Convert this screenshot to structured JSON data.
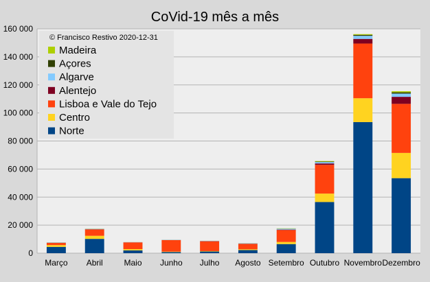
{
  "chart_data": {
    "type": "bar",
    "stacked": true,
    "title": "CoVid-19 mês a mês",
    "annotation": "© Francisco Restivo 2020-12-31",
    "xlabel": "",
    "ylabel": "",
    "ylim": [
      0,
      160000
    ],
    "yticks": [
      0,
      20000,
      40000,
      60000,
      80000,
      100000,
      120000,
      140000,
      160000
    ],
    "ytick_labels": [
      "0",
      "20 000",
      "40 000",
      "60 000",
      "80 000",
      "100 000",
      "120 000",
      "140 000",
      "160 000"
    ],
    "grid": true,
    "legend_position": "top-left",
    "categories": [
      "Março",
      "Abril",
      "Maio",
      "Junho",
      "Julho",
      "Agosto",
      "Setembro",
      "Outubro",
      "Novembro",
      "Dezembro"
    ],
    "series": [
      {
        "name": "Norte",
        "color": "#004586",
        "values": [
          4500,
          10200,
          2000,
          800,
          1200,
          2200,
          6500,
          36500,
          93500,
          53500
        ]
      },
      {
        "name": "Centro",
        "color": "#ffd320",
        "values": [
          1300,
          2200,
          900,
          300,
          300,
          600,
          1500,
          6000,
          17000,
          18000
        ]
      },
      {
        "name": "Lisboa e Vale do Tejo",
        "color": "#ff420e",
        "values": [
          1500,
          4500,
          4800,
          8200,
          7000,
          3800,
          8500,
          20500,
          39000,
          35000
        ]
      },
      {
        "name": "Alentejo",
        "color": "#7e0021",
        "values": [
          100,
          150,
          50,
          60,
          80,
          150,
          300,
          1000,
          3300,
          5000
        ]
      },
      {
        "name": "Algarve",
        "color": "#83caff",
        "values": [
          150,
          200,
          100,
          150,
          200,
          250,
          600,
          1000,
          2200,
          2300
        ]
      },
      {
        "name": "Açores",
        "color": "#314004",
        "values": [
          50,
          80,
          20,
          20,
          20,
          50,
          100,
          300,
          700,
          900
        ]
      },
      {
        "name": "Madeira",
        "color": "#aecf00",
        "values": [
          50,
          70,
          30,
          30,
          30,
          50,
          200,
          400,
          500,
          800
        ]
      }
    ]
  }
}
